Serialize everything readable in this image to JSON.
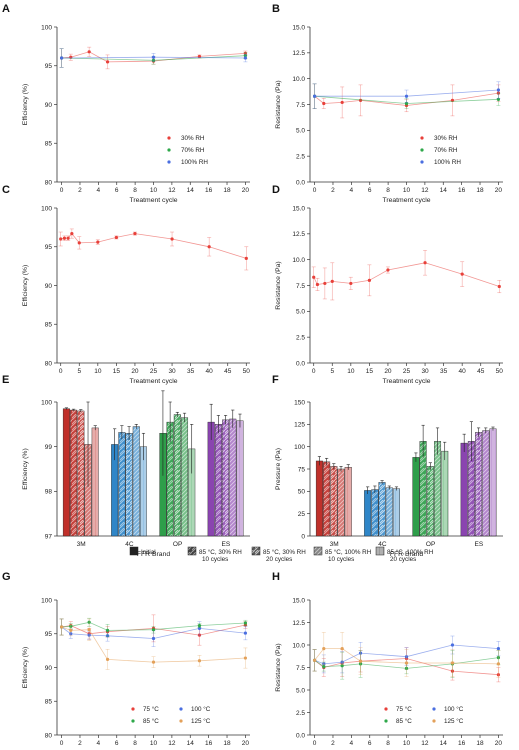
{
  "figure": {
    "panels": [
      "A",
      "B",
      "C",
      "D",
      "E",
      "F",
      "G",
      "H"
    ]
  },
  "legend_E_F": {
    "items": [
      "Initial",
      "85 °C, 30% RH\n10 cycles",
      "85 °C, 30% RH\n20 cycles",
      "85 °C, 100% RH\n10 cycles",
      "85 °C, 100% RH\n20 cycles"
    ]
  },
  "colors": {
    "red": "#e8403a",
    "green": "#2ea84a",
    "blue": "#4a6ee0",
    "orange": "#e3a15a",
    "3M": "#c0302a",
    "4C": "#2f86c8",
    "OP": "#2e9e4a",
    "ES": "#8a44b0"
  },
  "chart_data": [
    {
      "id": "A",
      "type": "line",
      "xlabel": "Treatment cycle",
      "ylabel": "Efficiency (%)",
      "xlim": [
        -0.5,
        20.5
      ],
      "ylim": [
        80,
        100
      ],
      "xticks": [
        0,
        2,
        4,
        6,
        8,
        10,
        12,
        14,
        16,
        18,
        20
      ],
      "yticks": [
        80,
        85,
        90,
        95,
        100
      ],
      "legend": "bottom-right",
      "series": [
        {
          "name": "30% RH",
          "color": "#e8403a",
          "x": [
            0,
            1,
            3,
            5,
            10,
            15,
            20
          ],
          "y": [
            96.0,
            96.1,
            96.8,
            95.5,
            95.6,
            96.2,
            96.6
          ],
          "err": [
            1.2,
            0.4,
            0.6,
            0.9,
            0.4,
            0.2,
            0.3
          ]
        },
        {
          "name": "70% RH",
          "color": "#2ea84a",
          "x": [
            0,
            10,
            20
          ],
          "y": [
            96.0,
            95.7,
            96.3
          ],
          "err": [
            1.2,
            0.5,
            0.4
          ]
        },
        {
          "name": "100% RH",
          "color": "#4a6ee0",
          "x": [
            0,
            10,
            20
          ],
          "y": [
            96.0,
            96.1,
            96.0
          ],
          "err": [
            1.2,
            0.5,
            0.5
          ]
        }
      ]
    },
    {
      "id": "B",
      "type": "line",
      "xlabel": "Treatment cycle",
      "ylabel": "Resistance (Pa)",
      "xlim": [
        -0.5,
        20.5
      ],
      "ylim": [
        0,
        15
      ],
      "xticks": [
        0,
        2,
        4,
        6,
        8,
        10,
        12,
        14,
        16,
        18,
        20
      ],
      "yticks": [
        0.0,
        2.5,
        5.0,
        7.5,
        10.0,
        12.5,
        15.0
      ],
      "ytick_labels": [
        "0.0",
        "2.5",
        "5.0",
        "7.5",
        "10.0",
        "12.5",
        "15.0"
      ],
      "legend": "bottom-right",
      "series": [
        {
          "name": "30% RH",
          "color": "#e8403a",
          "x": [
            0,
            1,
            3,
            5,
            10,
            15,
            20
          ],
          "y": [
            8.3,
            7.6,
            7.7,
            7.9,
            7.4,
            7.9,
            8.6
          ],
          "err": [
            1.2,
            0.5,
            1.5,
            1.5,
            0.6,
            1.5,
            0.8
          ]
        },
        {
          "name": "70% RH",
          "color": "#2ea84a",
          "x": [
            0,
            10,
            20
          ],
          "y": [
            8.3,
            7.6,
            8.0
          ],
          "err": [
            1.2,
            0.5,
            0.6
          ]
        },
        {
          "name": "100% RH",
          "color": "#4a6ee0",
          "x": [
            0,
            10,
            20
          ],
          "y": [
            8.3,
            8.3,
            8.9
          ],
          "err": [
            1.2,
            0.6,
            0.8
          ]
        }
      ]
    },
    {
      "id": "C",
      "type": "line",
      "xlabel": "Treatment cycle",
      "ylabel": "Efficiency (%)",
      "xlim": [
        -1,
        51
      ],
      "ylim": [
        80,
        100
      ],
      "xticks": [
        0,
        5,
        10,
        15,
        20,
        25,
        30,
        35,
        40,
        45,
        50
      ],
      "yticks": [
        80,
        85,
        90,
        95,
        100
      ],
      "series": [
        {
          "name": "",
          "color": "#e8403a",
          "x": [
            0,
            1,
            2,
            3,
            5,
            10,
            15,
            20,
            30,
            40,
            50
          ],
          "y": [
            96.0,
            96.1,
            96.1,
            96.7,
            95.5,
            95.6,
            96.2,
            96.7,
            96.0,
            95.0,
            93.5
          ],
          "err": [
            0.9,
            0.3,
            0.3,
            0.6,
            0.8,
            0.3,
            0.2,
            0.2,
            0.9,
            1.2,
            1.5
          ]
        }
      ]
    },
    {
      "id": "D",
      "type": "line",
      "xlabel": "Treatment cycle",
      "ylabel": "Resistance (Pa)",
      "xlim": [
        -1,
        51
      ],
      "ylim": [
        0,
        15
      ],
      "xticks": [
        0,
        5,
        10,
        15,
        20,
        25,
        30,
        35,
        40,
        45,
        50
      ],
      "yticks": [
        0.0,
        2.5,
        5.0,
        7.5,
        10.0,
        12.5,
        15.0
      ],
      "ytick_labels": [
        "0.0",
        "2.5",
        "5.0",
        "7.5",
        "10.0",
        "12.5",
        "15.0"
      ],
      "series": [
        {
          "name": "",
          "color": "#e8403a",
          "x": [
            0,
            1,
            3,
            5,
            10,
            15,
            20,
            30,
            40,
            50
          ],
          "y": [
            8.3,
            7.6,
            7.7,
            7.9,
            7.7,
            8.0,
            9.0,
            9.7,
            8.6,
            7.4
          ],
          "err": [
            1.0,
            0.6,
            1.5,
            1.8,
            0.6,
            1.5,
            0.3,
            1.2,
            1.2,
            0.6
          ]
        }
      ]
    },
    {
      "id": "E",
      "type": "bar",
      "xlabel": "FFR Brand",
      "ylabel": "Efficiency (%)",
      "ylim": [
        97,
        100
      ],
      "yticks": [
        97,
        98,
        99,
        100
      ],
      "categories": [
        "3M",
        "4C",
        "OP",
        "ES"
      ],
      "conditions": [
        "Initial",
        "85 °C, 30% RH 10 cycles",
        "85 °C, 30% RH 20 cycles",
        "85 °C, 100% RH 10 cycles",
        "85 °C, 100% RH 20 cycles"
      ],
      "values": [
        [
          99.85,
          99.82,
          99.8,
          99.05,
          99.42
        ],
        [
          99.05,
          99.32,
          99.3,
          99.45,
          99.0
        ],
        [
          99.3,
          99.55,
          99.72,
          99.65,
          98.95
        ],
        [
          99.55,
          99.5,
          99.6,
          99.62,
          99.58
        ]
      ],
      "err": [
        [
          0.02,
          0.02,
          0.03,
          0.95,
          0.05
        ],
        [
          0.35,
          0.15,
          0.15,
          0.05,
          0.3
        ],
        [
          0.95,
          0.45,
          0.05,
          0.1,
          0.55
        ],
        [
          0.4,
          0.2,
          0.1,
          0.2,
          0.15
        ]
      ]
    },
    {
      "id": "F",
      "type": "bar",
      "xlabel": "FFR Brand",
      "ylabel": "Pressure (Pa)",
      "ylim": [
        0,
        150
      ],
      "yticks": [
        0,
        25,
        50,
        75,
        100,
        125,
        150
      ],
      "categories": [
        "3M",
        "4C",
        "OP",
        "ES"
      ],
      "conditions": [
        "Initial",
        "85 °C, 30% RH 10 cycles",
        "85 °C, 30% RH 20 cycles",
        "85 °C, 100% RH 10 cycles",
        "85 °C, 100% RH 20 cycles"
      ],
      "values": [
        [
          84,
          83,
          78,
          75,
          77
        ],
        [
          51,
          52,
          60,
          54,
          53
        ],
        [
          88,
          106,
          78,
          106,
          95
        ],
        [
          104,
          106,
          116,
          118,
          120
        ]
      ],
      "err": [
        [
          5,
          4,
          3,
          3,
          3
        ],
        [
          4,
          4,
          2,
          2,
          2
        ],
        [
          5,
          18,
          4,
          15,
          10
        ],
        [
          10,
          22,
          5,
          3,
          2
        ]
      ]
    },
    {
      "id": "G",
      "type": "line",
      "xlabel": "Treatment cycle",
      "ylabel": "Efficiency (%)",
      "xlim": [
        -0.5,
        20.5
      ],
      "ylim": [
        80,
        100
      ],
      "xticks": [
        0,
        2,
        4,
        6,
        8,
        10,
        12,
        14,
        16,
        18,
        20
      ],
      "yticks": [
        80,
        85,
        90,
        95,
        100
      ],
      "legend": "bottom (2 columns)",
      "series": [
        {
          "name": "75 °C",
          "color": "#e8403a",
          "x": [
            0,
            1,
            3,
            5,
            10,
            15,
            20
          ],
          "y": [
            96.0,
            96.2,
            95.0,
            95.3,
            95.8,
            94.8,
            96.3
          ],
          "err": [
            1.2,
            0.6,
            0.8,
            0.8,
            2.0,
            1.5,
            0.5
          ]
        },
        {
          "name": "100 °C",
          "color": "#4a6ee0",
          "x": [
            0,
            1,
            3,
            5,
            10,
            15,
            20
          ],
          "y": [
            96.0,
            95.0,
            94.8,
            94.7,
            94.3,
            95.8,
            95.1
          ],
          "err": [
            1.2,
            0.7,
            0.6,
            0.8,
            1.2,
            1.0,
            1.0
          ]
        },
        {
          "name": "85 °C",
          "color": "#2ea84a",
          "x": [
            0,
            1,
            3,
            5,
            10,
            15,
            20
          ],
          "y": [
            96.0,
            96.1,
            96.7,
            95.5,
            95.6,
            96.2,
            96.6
          ],
          "err": [
            1.2,
            0.4,
            0.6,
            0.9,
            0.5,
            0.3,
            0.4
          ]
        },
        {
          "name": "125 °C",
          "color": "#e3a15a",
          "x": [
            0,
            1,
            3,
            5,
            10,
            15,
            20
          ],
          "y": [
            96.0,
            95.5,
            95.6,
            91.2,
            90.8,
            91.0,
            91.4
          ],
          "err": [
            1.2,
            0.8,
            1.6,
            1.5,
            0.8,
            0.8,
            1.5
          ]
        }
      ]
    },
    {
      "id": "H",
      "type": "line",
      "xlabel": "Treatment cycle",
      "ylabel": "Resistance (Pa)",
      "xlim": [
        -0.5,
        20.5
      ],
      "ylim": [
        0,
        15
      ],
      "xticks": [
        0,
        2,
        4,
        6,
        8,
        10,
        12,
        14,
        16,
        18,
        20
      ],
      "yticks": [
        0.0,
        2.5,
        5.0,
        7.5,
        10.0,
        12.5,
        15.0
      ],
      "ytick_labels": [
        "0.0",
        "2.5",
        "5.0",
        "7.5",
        "10.0",
        "12.5",
        "15.0"
      ],
      "legend": "bottom (2 columns)",
      "series": [
        {
          "name": "75 °C",
          "color": "#e8403a",
          "x": [
            0,
            1,
            3,
            5,
            10,
            15,
            20
          ],
          "y": [
            8.3,
            7.5,
            8.0,
            8.2,
            8.5,
            7.1,
            6.7
          ],
          "err": [
            1.2,
            1.0,
            1.5,
            1.2,
            1.2,
            1.0,
            0.8
          ]
        },
        {
          "name": "100 °C",
          "color": "#4a6ee0",
          "x": [
            0,
            1,
            3,
            5,
            10,
            15,
            20
          ],
          "y": [
            8.3,
            7.9,
            8.1,
            9.1,
            8.7,
            10.0,
            9.6
          ],
          "err": [
            1.2,
            1.0,
            1.2,
            1.2,
            1.0,
            1.0,
            0.8
          ]
        },
        {
          "name": "85 °C",
          "color": "#2ea84a",
          "x": [
            0,
            1,
            3,
            5,
            10,
            15,
            20
          ],
          "y": [
            8.3,
            7.6,
            7.7,
            7.9,
            7.4,
            7.9,
            8.6
          ],
          "err": [
            1.2,
            0.5,
            1.5,
            1.5,
            0.6,
            1.5,
            0.8
          ]
        },
        {
          "name": "125 °C",
          "color": "#e3a15a",
          "x": [
            0,
            1,
            3,
            5,
            10,
            15,
            20
          ],
          "y": [
            8.3,
            9.6,
            9.6,
            8.2,
            8.0,
            8.0,
            7.9
          ],
          "err": [
            1.2,
            1.8,
            1.8,
            1.5,
            1.5,
            1.5,
            1.5
          ]
        }
      ]
    }
  ]
}
